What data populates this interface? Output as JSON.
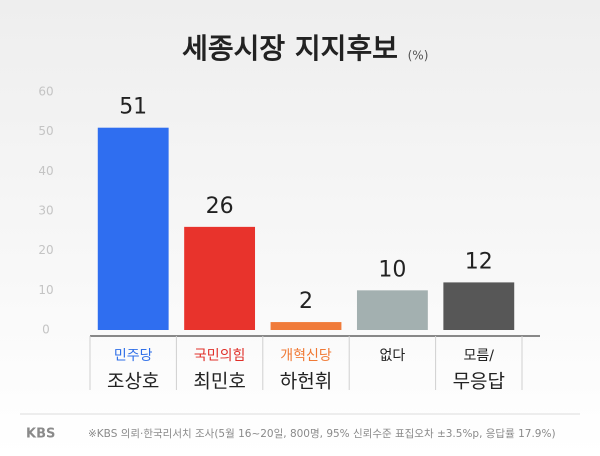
{
  "chart_data": {
    "type": "bar",
    "title": "세종시장 지지후보",
    "unit": "(%)",
    "categories": [
      [
        "민주당",
        "조상호"
      ],
      [
        "국민의힘",
        "최민호"
      ],
      [
        "개혁신당",
        "하헌휘"
      ],
      [
        "없다"
      ],
      [
        "모름/",
        "무응답"
      ]
    ],
    "category_colors": [
      [
        "#2f6fe8",
        "#222222"
      ],
      [
        "#e0302a",
        "#222222"
      ],
      [
        "#f07a36",
        "#222222"
      ],
      [
        "#222222"
      ],
      [
        "#222222",
        "#222222"
      ]
    ],
    "values": [
      51,
      26,
      2,
      10,
      12
    ],
    "colors": [
      "#2f6ef0",
      "#e8332c",
      "#f07b3a",
      "#a3b0b0",
      "#575757"
    ],
    "ylim": [
      0,
      60
    ],
    "yticks": [
      0,
      10,
      20,
      30,
      40,
      50,
      60
    ],
    "grid": false,
    "source": "※KBS 의뢰·한국리서치 조사(5월 16~20일, 800명, 95% 신뢰수준 표집오차 ±3.5%p, 응답률 17.9%)",
    "logo": "KBS"
  }
}
